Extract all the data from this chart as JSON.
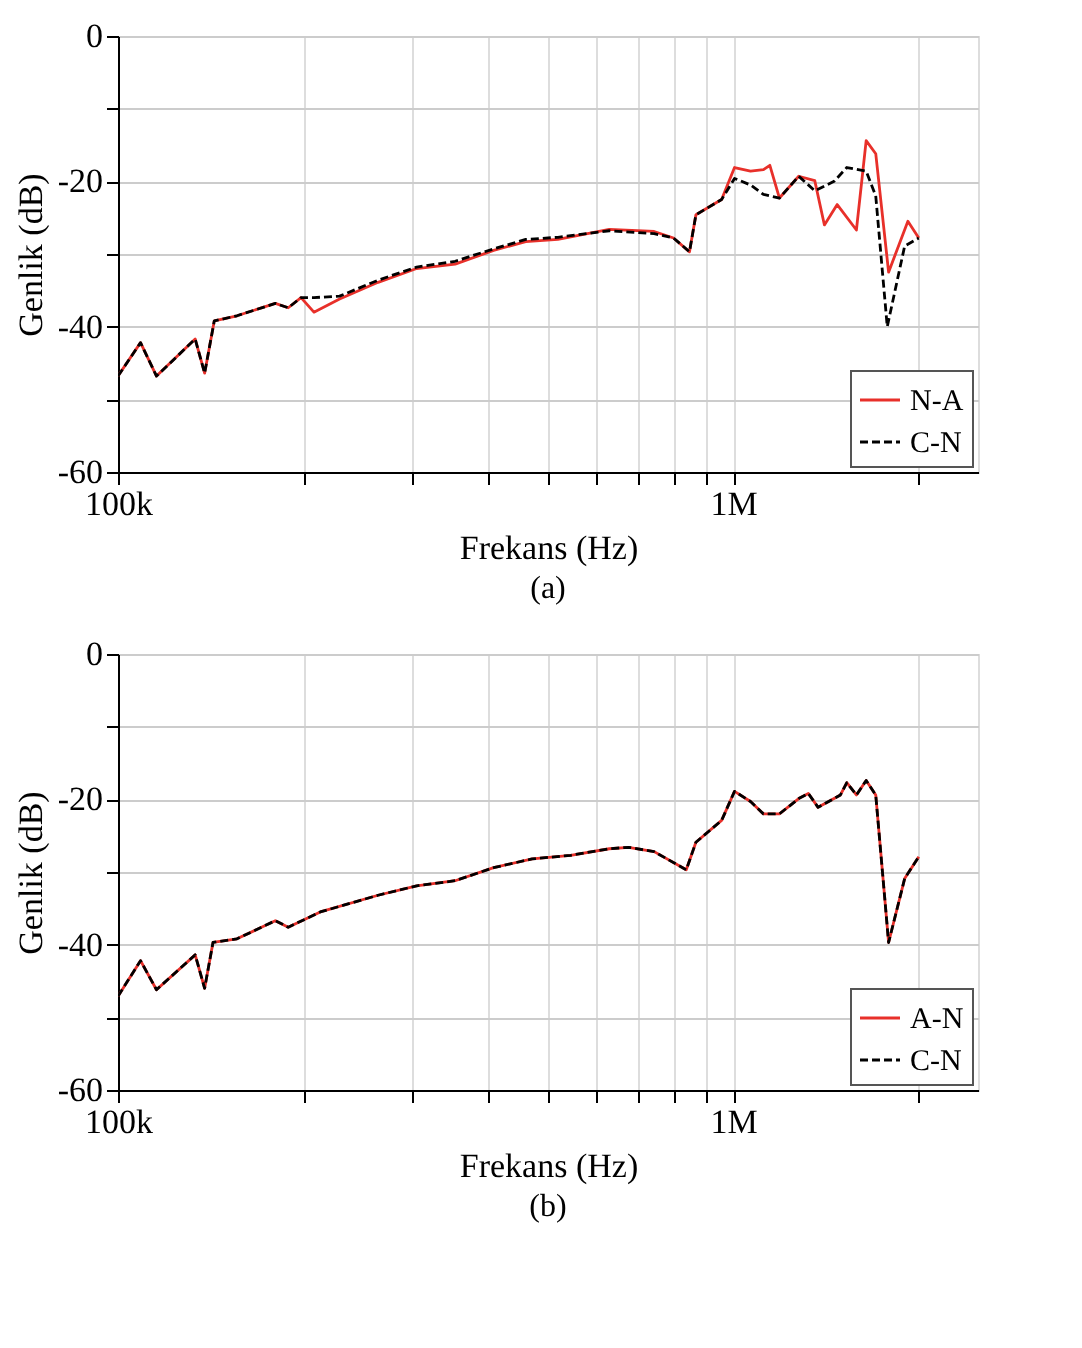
{
  "chart_data": [
    {
      "type": "line",
      "title": "(a)",
      "xlabel": "Frekans (Hz)",
      "ylabel": "Genlik (dB)",
      "log": "x",
      "grid": true,
      "legend": "bottom right",
      "xlim": [
        100000,
        2500000
      ],
      "ylim": [
        -60,
        0
      ],
      "xticks": [
        {
          "value": 100000,
          "label": "100k"
        },
        {
          "value": 200000,
          "label": null
        },
        {
          "value": 300000,
          "label": null
        },
        {
          "value": 400000,
          "label": null
        },
        {
          "value": 500000,
          "label": null
        },
        {
          "value": 600000,
          "label": null
        },
        {
          "value": 700000,
          "label": null
        },
        {
          "value": 800000,
          "label": null
        },
        {
          "value": 900000,
          "label": null
        },
        {
          "value": 1000000,
          "label": "1M"
        },
        {
          "value": 2000000,
          "label": null
        }
      ],
      "yticks": [
        0,
        {
          "value": -10,
          "label": null
        },
        -20,
        {
          "value": -30,
          "label": null
        },
        -40,
        {
          "value": -50,
          "label": null
        },
        -60
      ],
      "series": [
        {
          "name": "N-A",
          "color": "#e8302a",
          "line_style": "solid",
          "x": [
            100000,
            108800,
            115500,
            133500,
            138300,
            143400,
            156100,
            180200,
            189100,
            198400,
            208200,
            229200,
            264700,
            305800,
            353200,
            407900,
            460000,
            518800,
            628900,
            743900,
            799800,
            849100,
            869800,
            957600,
            1005000,
            1067000,
            1120000,
            1147000,
            1189000,
            1278000,
            1357000,
            1407000,
            1476000,
            1586000,
            1645000,
            1705000,
            1789000,
            1923000,
            2003000
          ],
          "values": [
            -46.8,
            -42.2,
            -46.8,
            -41.7,
            -46.4,
            -39.2,
            -38.5,
            -36.8,
            -37.4,
            -36.0,
            -38.0,
            -36.2,
            -33.9,
            -32.0,
            -31.4,
            -29.5,
            -28.3,
            -28.0,
            -26.6,
            -26.9,
            -27.8,
            -29.7,
            -24.6,
            -22.5,
            -18.1,
            -18.6,
            -18.4,
            -17.8,
            -22.3,
            -19.3,
            -19.9,
            -26.0,
            -23.2,
            -26.7,
            -14.4,
            -16.2,
            -32.5,
            -25.5,
            -27.8
          ]
        },
        {
          "name": "C-N",
          "color": "#000000",
          "line_style": "dashed",
          "x": [
            100000,
            108800,
            115500,
            133500,
            138300,
            143400,
            156100,
            180200,
            189100,
            198400,
            208200,
            229200,
            264700,
            305800,
            353200,
            407900,
            460000,
            518800,
            628900,
            743900,
            799800,
            849100,
            869800,
            957600,
            1005000,
            1067000,
            1120000,
            1189000,
            1278000,
            1357000,
            1459000,
            1530000,
            1645000,
            1705000,
            1780000,
            1900000,
            2003000
          ],
          "values": [
            -46.8,
            -42.2,
            -46.8,
            -41.7,
            -46.4,
            -39.2,
            -38.5,
            -36.8,
            -37.4,
            -36.0,
            -36.0,
            -35.8,
            -33.6,
            -31.8,
            -31.0,
            -29.3,
            -28.0,
            -27.7,
            -26.8,
            -27.2,
            -27.8,
            -29.7,
            -24.6,
            -22.5,
            -19.6,
            -20.5,
            -21.8,
            -22.3,
            -19.3,
            -21.3,
            -20.0,
            -18.1,
            -18.6,
            -22.0,
            -40.0,
            -28.9,
            -27.8
          ]
        }
      ]
    },
    {
      "type": "line",
      "title": "(b)",
      "xlabel": "Frekans (Hz)",
      "ylabel": "Genlik (dB)",
      "log": "x",
      "grid": true,
      "legend": "bottom right",
      "xlim": [
        100000,
        2500000
      ],
      "ylim": [
        -60,
        0
      ],
      "xticks": [
        {
          "value": 100000,
          "label": "100k"
        },
        {
          "value": 200000,
          "label": null
        },
        {
          "value": 300000,
          "label": null
        },
        {
          "value": 400000,
          "label": null
        },
        {
          "value": 500000,
          "label": null
        },
        {
          "value": 600000,
          "label": null
        },
        {
          "value": 700000,
          "label": null
        },
        {
          "value": 800000,
          "label": null
        },
        {
          "value": 900000,
          "label": null
        },
        {
          "value": 1000000,
          "label": "1M"
        },
        {
          "value": 2000000,
          "label": null
        }
      ],
      "yticks": [
        0,
        {
          "value": -10,
          "label": null
        },
        -20,
        {
          "value": -30,
          "label": null
        },
        -40,
        {
          "value": -50,
          "label": null
        },
        -60
      ],
      "series": [
        {
          "name": "A-N",
          "color": "#e8302a",
          "line_style": "solid",
          "x": [
            100000,
            108800,
            115500,
            133500,
            138300,
            142700,
            156100,
            180200,
            189100,
            213200,
            264700,
            305800,
            353200,
            407900,
            471300,
            544400,
            628900,
            676000,
            743900,
            838900,
            869800,
            957600,
            1005000,
            1067000,
            1120000,
            1189000,
            1278000,
            1325000,
            1374000,
            1494000,
            1530000,
            1586000,
            1645000,
            1705000,
            1789000,
            1900000,
            2003000
          ],
          "values": [
            -47.1,
            -42.2,
            -46.2,
            -41.4,
            -46.0,
            -39.7,
            -39.2,
            -36.7,
            -37.6,
            -35.5,
            -33.2,
            -31.9,
            -31.2,
            -29.4,
            -28.2,
            -27.7,
            -26.8,
            -26.6,
            -27.2,
            -29.7,
            -25.9,
            -22.9,
            -18.9,
            -20.3,
            -22.0,
            -22.0,
            -19.9,
            -19.2,
            -21.1,
            -19.4,
            -17.7,
            -19.4,
            -17.4,
            -19.4,
            -39.7,
            -30.9,
            -27.9
          ]
        },
        {
          "name": "C-N",
          "color": "#000000",
          "line_style": "dashed",
          "x": [
            100000,
            108800,
            115500,
            133500,
            138300,
            142700,
            156100,
            180200,
            189100,
            213200,
            264700,
            305800,
            353200,
            407900,
            471300,
            544400,
            628900,
            676000,
            743900,
            838900,
            869800,
            957600,
            1005000,
            1067000,
            1120000,
            1189000,
            1278000,
            1325000,
            1374000,
            1494000,
            1530000,
            1586000,
            1645000,
            1705000,
            1789000,
            1900000,
            2003000
          ],
          "values": [
            -47.1,
            -42.2,
            -46.2,
            -41.4,
            -46.0,
            -39.7,
            -39.2,
            -36.7,
            -37.6,
            -35.5,
            -33.2,
            -31.9,
            -31.2,
            -29.4,
            -28.2,
            -27.7,
            -26.8,
            -26.6,
            -27.2,
            -29.7,
            -25.9,
            -22.9,
            -18.9,
            -20.3,
            -22.0,
            -22.0,
            -19.9,
            -19.2,
            -21.1,
            -19.4,
            -17.7,
            -19.4,
            -17.4,
            -19.4,
            -39.7,
            -30.9,
            -27.9
          ]
        }
      ]
    }
  ]
}
